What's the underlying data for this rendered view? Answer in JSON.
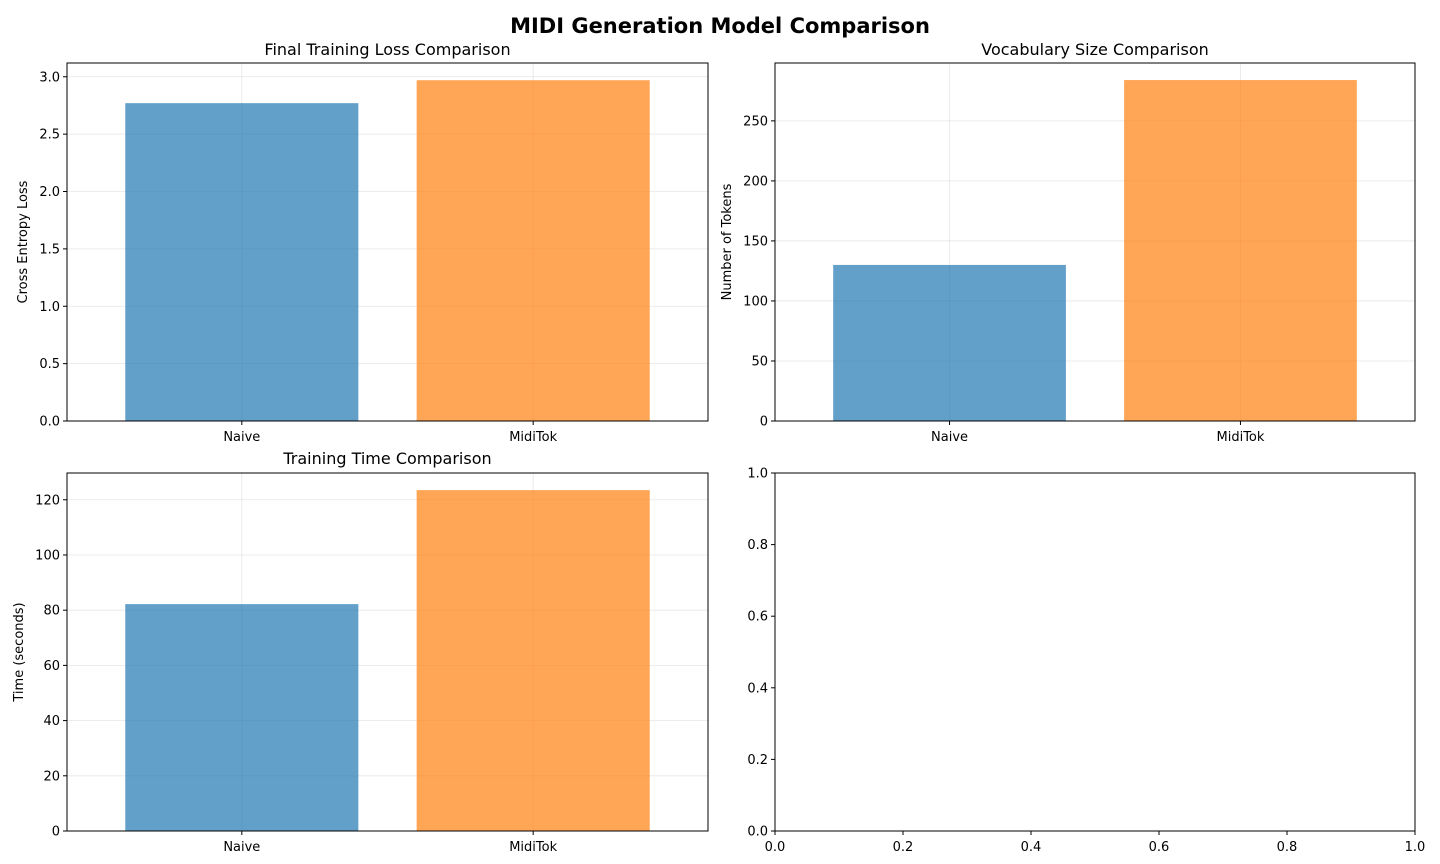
{
  "figure": {
    "title": "MIDI Generation Model Comparison"
  },
  "chart_data": [
    {
      "type": "bar",
      "title": "Final Training Loss Comparison",
      "xlabel": "",
      "ylabel": "Cross Entropy Loss",
      "categories": [
        "Naive",
        "MidiTok"
      ],
      "values": [
        2.77,
        2.97
      ],
      "colors": [
        "#1f77b4",
        "#ff7f0e"
      ],
      "bar_alpha": 0.7,
      "ylim": [
        0,
        3.12
      ],
      "yticks": [
        0.0,
        0.5,
        1.0,
        1.5,
        2.0,
        2.5,
        3.0
      ],
      "ytick_labels": [
        "0.0",
        "0.5",
        "1.0",
        "1.5",
        "2.0",
        "2.5",
        "3.0"
      ],
      "grid": true
    },
    {
      "type": "bar",
      "title": "Vocabulary Size Comparison",
      "xlabel": "",
      "ylabel": "Number of Tokens",
      "categories": [
        "Naive",
        "MidiTok"
      ],
      "values": [
        130,
        284
      ],
      "colors": [
        "#1f77b4",
        "#ff7f0e"
      ],
      "bar_alpha": 0.7,
      "ylim": [
        0,
        298.2
      ],
      "yticks": [
        0,
        50,
        100,
        150,
        200,
        250
      ],
      "ytick_labels": [
        "0",
        "50",
        "100",
        "150",
        "200",
        "250"
      ],
      "grid": true
    },
    {
      "type": "bar",
      "title": "Training Time Comparison",
      "xlabel": "",
      "ylabel": "Time (seconds)",
      "categories": [
        "Naive",
        "MidiTok"
      ],
      "values": [
        82.2,
        123.5
      ],
      "colors": [
        "#1f77b4",
        "#ff7f0e"
      ],
      "bar_alpha": 0.7,
      "ylim": [
        0,
        129.7
      ],
      "yticks": [
        0,
        20,
        40,
        60,
        80,
        100,
        120
      ],
      "ytick_labels": [
        "0",
        "20",
        "40",
        "60",
        "80",
        "100",
        "120"
      ],
      "grid": true
    },
    {
      "type": "empty",
      "title": "",
      "xlabel": "",
      "ylabel": "",
      "xlim": [
        0,
        1
      ],
      "ylim": [
        0,
        1
      ],
      "xticks": [
        0.0,
        0.2,
        0.4,
        0.6,
        0.8,
        1.0
      ],
      "xtick_labels": [
        "0.0",
        "0.2",
        "0.4",
        "0.6",
        "0.8",
        "1.0"
      ],
      "yticks": [
        0.0,
        0.2,
        0.4,
        0.6,
        0.8,
        1.0
      ],
      "ytick_labels": [
        "0.0",
        "0.2",
        "0.4",
        "0.6",
        "0.8",
        "1.0"
      ],
      "grid": false
    }
  ]
}
